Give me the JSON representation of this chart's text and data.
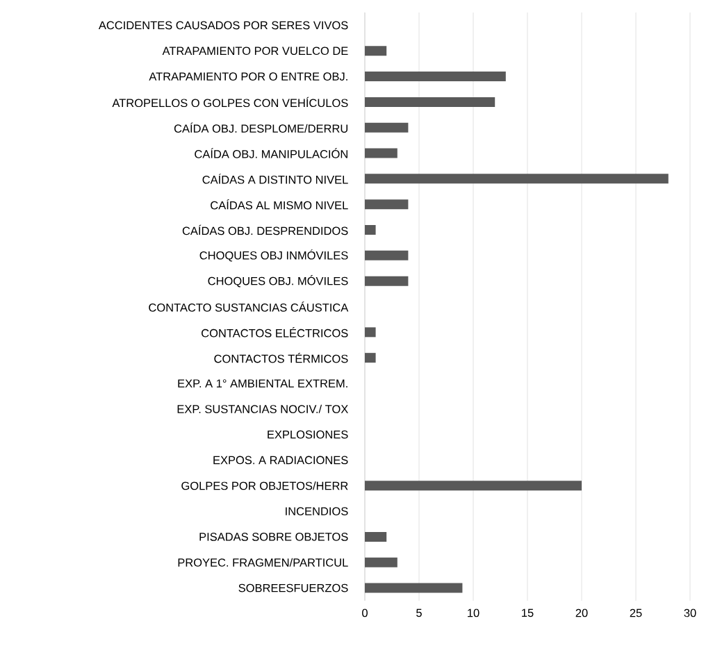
{
  "chart_data": {
    "type": "bar",
    "orientation": "horizontal",
    "categories": [
      "ACCIDENTES CAUSADOS POR SERES VIVOS",
      "ATRAPAMIENTO POR VUELCO DE",
      "ATRAPAMIENTO POR O ENTRE OBJ.",
      "ATROPELLOS O GOLPES CON VEHÍCULOS",
      "CAÍDA OBJ. DESPLOME/DERRU",
      "CAÍDA OBJ. MANIPULACIÓN",
      "CAÍDAS A DISTINTO NIVEL",
      "CAÍDAS AL MISMO NIVEL",
      "CAÍDAS OBJ. DESPRENDIDOS",
      "CHOQUES OBJ INMÓVILES",
      "CHOQUES OBJ. MÓVILES",
      "CONTACTO SUSTANCIAS CÁUSTICA",
      "CONTACTOS ELÉCTRICOS",
      "CONTACTOS TÉRMICOS",
      "EXP. A 1° AMBIENTAL EXTREM.",
      "EXP. SUSTANCIAS NOCIV./ TOX",
      "EXPLOSIONES",
      "EXPOS. A RADIACIONES",
      "GOLPES POR OBJETOS/HERR",
      "INCENDIOS",
      "PISADAS SOBRE OBJETOS",
      "PROYEC. FRAGMEN/PARTICUL",
      "SOBREESFUERZOS"
    ],
    "values": [
      0,
      2,
      13,
      12,
      4,
      3,
      28,
      4,
      1,
      4,
      4,
      0,
      1,
      1,
      0,
      0,
      0,
      0,
      20,
      0,
      2,
      3,
      9
    ],
    "color": "#595959",
    "xlim": [
      0,
      30
    ],
    "xticks": [
      0,
      5,
      10,
      15,
      20,
      25,
      30
    ],
    "grid": "x"
  }
}
